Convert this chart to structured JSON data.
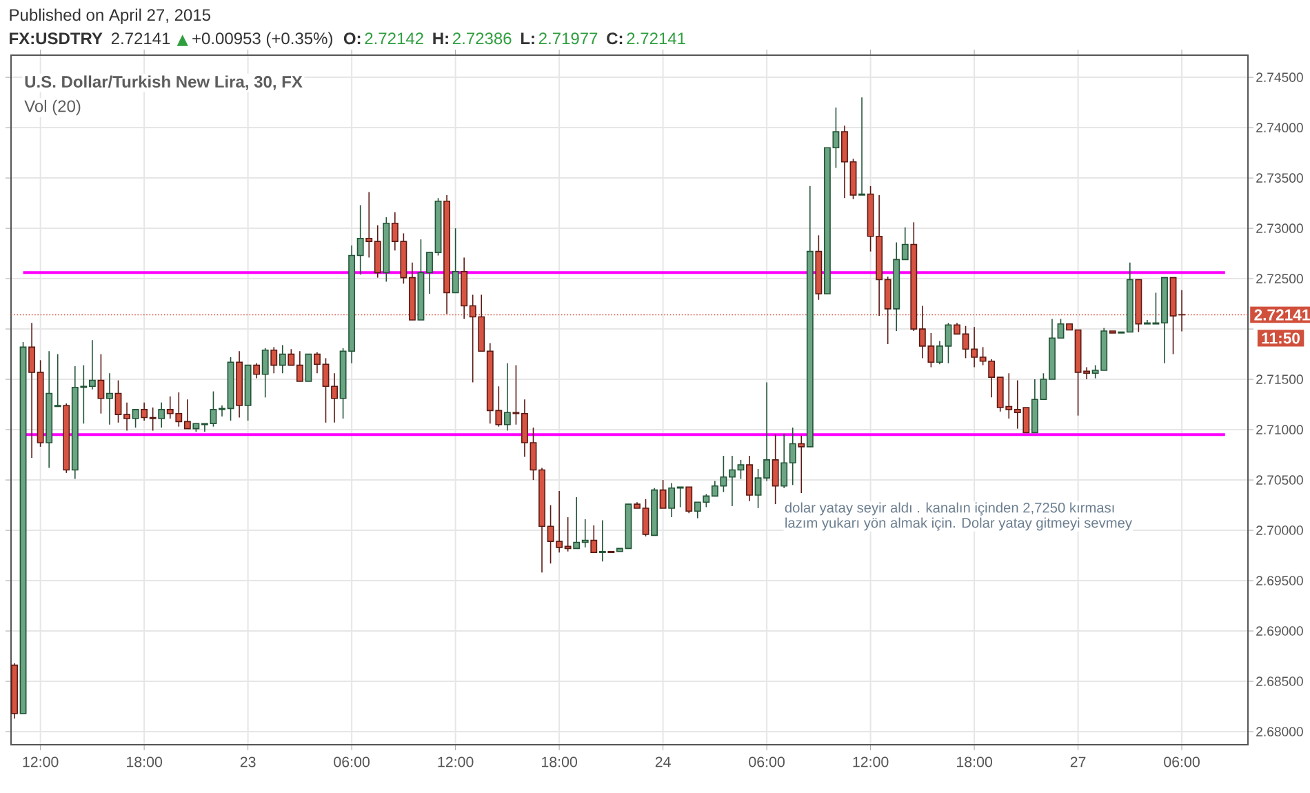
{
  "chart_data": {
    "type": "candlestick",
    "title": "U.S. Dollar/Turkish New Lira, 30, FX",
    "subtitle": "Vol (20)",
    "annotations": [
      "Published on April 27, 2015",
      "FX:USDTRY",
      "2.72141",
      "▲",
      "+0.00953 (+0.35%)",
      "O:",
      "2.72142",
      "H:",
      "2.72386",
      "L:",
      "2.71977",
      "C:",
      "2.72141",
      "11:50",
      "dolar yatay seyir aldı . kanalın içinden 2,7250 kırması",
      "lazım yukarı yön almak için. Dolar yatay gitmeyi sevmey"
    ],
    "categories": [
      null,
      null,
      null,
      "12:00",
      null,
      null,
      null,
      null,
      null,
      null,
      null,
      null,
      null,
      null,
      null,
      "18:00",
      null,
      null,
      null,
      null,
      null,
      null,
      null,
      null,
      null,
      null,
      null,
      "23",
      null,
      null,
      null,
      null,
      null,
      null,
      null,
      null,
      null,
      null,
      null,
      "06:00",
      null,
      null,
      null,
      null,
      null,
      null,
      null,
      null,
      null,
      null,
      null,
      "12:00",
      null,
      null,
      null,
      null,
      null,
      null,
      null,
      null,
      null,
      null,
      null,
      "18:00",
      null,
      null,
      null,
      null,
      null,
      null,
      null,
      null,
      null,
      null,
      null,
      "24",
      null,
      null,
      null,
      null,
      null,
      null,
      null,
      null,
      null,
      null,
      null,
      "06:00",
      null,
      null,
      null,
      null,
      null,
      null,
      null,
      null,
      null,
      null,
      null,
      "12:00",
      null,
      null,
      null,
      null,
      null,
      null,
      null,
      null,
      null,
      null,
      null,
      "18:00",
      null,
      null,
      null,
      null,
      null,
      null,
      null,
      null,
      null,
      null,
      null,
      "27",
      null,
      null,
      null,
      null,
      null,
      null,
      null,
      null,
      null,
      null,
      null,
      "06:00"
    ],
    "ohlc": [
      [
        2.6866,
        2.6868,
        2.6813,
        2.6818
      ],
      [
        2.6818,
        2.7187,
        2.6818,
        2.7182
      ],
      [
        2.7182,
        2.7206,
        2.7072,
        2.7157
      ],
      [
        2.7157,
        2.7169,
        2.7083,
        2.7087
      ],
      [
        2.7087,
        2.7178,
        2.7062,
        2.7136
      ],
      [
        2.7123,
        2.7175,
        2.7123,
        2.7124
      ],
      [
        2.7124,
        2.7126,
        2.7057,
        2.706
      ],
      [
        2.706,
        2.7163,
        2.7051,
        2.7142
      ],
      [
        2.7142,
        2.7164,
        2.7106,
        2.7143
      ],
      [
        2.7143,
        2.7189,
        2.714,
        2.7149
      ],
      [
        2.7149,
        2.7175,
        2.7116,
        2.7131
      ],
      [
        2.7131,
        2.7156,
        2.7105,
        2.7136
      ],
      [
        2.7136,
        2.7149,
        2.7107,
        2.7115
      ],
      [
        2.7115,
        2.7127,
        2.7099,
        2.7111
      ],
      [
        2.7111,
        2.712,
        2.7102,
        2.712
      ],
      [
        2.712,
        2.7127,
        2.7109,
        2.7112
      ],
      [
        2.7112,
        2.7122,
        2.7099,
        2.7111
      ],
      [
        2.7111,
        2.7127,
        2.7102,
        2.712
      ],
      [
        2.712,
        2.7133,
        2.7111,
        2.7116
      ],
      [
        2.7116,
        2.7137,
        2.7103,
        2.7108
      ],
      [
        2.7108,
        2.713,
        2.7101,
        2.7101
      ],
      [
        2.7101,
        2.7106,
        2.7098,
        2.7106
      ],
      [
        2.7105,
        2.7106,
        2.7098,
        2.7106
      ],
      [
        2.7106,
        2.7138,
        2.7103,
        2.712
      ],
      [
        2.712,
        2.7124,
        2.7113,
        2.7121
      ],
      [
        2.7121,
        2.7172,
        2.7109,
        2.7167
      ],
      [
        2.7167,
        2.7178,
        2.7112,
        2.7124
      ],
      [
        2.7124,
        2.7164,
        2.7109,
        2.7164
      ],
      [
        2.7164,
        2.7166,
        2.7151,
        2.7155
      ],
      [
        2.7155,
        2.7181,
        2.7132,
        2.7179
      ],
      [
        2.7179,
        2.7182,
        2.7156,
        2.7164
      ],
      [
        2.7164,
        2.7184,
        2.7156,
        2.7175
      ],
      [
        2.7175,
        2.718,
        2.7164,
        2.7164
      ],
      [
        2.7164,
        2.7178,
        2.7148,
        2.7148
      ],
      [
        2.7148,
        2.7175,
        2.7148,
        2.7175
      ],
      [
        2.7175,
        2.7177,
        2.7156,
        2.7165
      ],
      [
        2.7165,
        2.7171,
        2.7107,
        2.7143
      ],
      [
        2.7143,
        2.7156,
        2.7107,
        2.7131
      ],
      [
        2.7131,
        2.7181,
        2.7111,
        2.7178
      ],
      [
        2.7178,
        2.7283,
        2.7166,
        2.7273
      ],
      [
        2.7273,
        2.7323,
        2.7254,
        2.729
      ],
      [
        2.729,
        2.7336,
        2.7271,
        2.7287
      ],
      [
        2.7287,
        2.7303,
        2.7251,
        2.7256
      ],
      [
        2.7256,
        2.7311,
        2.7247,
        2.7305
      ],
      [
        2.7305,
        2.7316,
        2.7278,
        2.7287
      ],
      [
        2.7287,
        2.7295,
        2.7245,
        2.7251
      ],
      [
        2.7251,
        2.7266,
        2.7209,
        2.7209
      ],
      [
        2.7209,
        2.7289,
        2.7209,
        2.7256
      ],
      [
        2.7256,
        2.7276,
        2.7235,
        2.7276
      ],
      [
        2.7276,
        2.733,
        2.7273,
        2.7327
      ],
      [
        2.7327,
        2.7333,
        2.7215,
        2.7236
      ],
      [
        2.7236,
        2.73,
        2.7236,
        2.7257
      ],
      [
        2.7257,
        2.7271,
        2.721,
        2.7223
      ],
      [
        2.7223,
        2.7234,
        2.7147,
        2.7212
      ],
      [
        2.7212,
        2.7234,
        2.7178,
        2.7178
      ],
      [
        2.7178,
        2.7186,
        2.7106,
        2.7119
      ],
      [
        2.7119,
        2.7143,
        2.7103,
        2.7105
      ],
      [
        2.7105,
        2.7166,
        2.7099,
        2.7117
      ],
      [
        2.7117,
        2.7164,
        2.7105,
        2.7116
      ],
      [
        2.7116,
        2.713,
        2.7073,
        2.7087
      ],
      [
        2.7087,
        2.7102,
        2.705,
        2.706
      ],
      [
        2.706,
        2.7062,
        2.6958,
        2.7004
      ],
      [
        2.7004,
        2.7025,
        2.6967,
        2.6989
      ],
      [
        2.6989,
        2.7039,
        2.6978,
        2.6983
      ],
      [
        2.6984,
        2.7013,
        2.6979,
        2.6982
      ],
      [
        2.6982,
        2.7033,
        2.6982,
        2.6988
      ],
      [
        2.6988,
        2.7011,
        2.6983,
        2.699
      ],
      [
        2.699,
        2.7005,
        2.6978,
        2.6978
      ],
      [
        2.6978,
        2.701,
        2.6969,
        2.6979
      ],
      [
        2.6979,
        2.6979,
        2.6978,
        2.6978
      ],
      [
        2.6979,
        2.6982,
        2.6979,
        2.6982
      ],
      [
        2.6982,
        2.7026,
        2.6982,
        2.7026
      ],
      [
        2.7026,
        2.7028,
        2.7022,
        2.7022
      ],
      [
        2.7022,
        2.7031,
        2.6994,
        2.6996
      ],
      [
        2.6995,
        2.7042,
        2.6995,
        2.704
      ],
      [
        2.704,
        2.705,
        2.7022,
        2.7022
      ],
      [
        2.7022,
        2.7047,
        2.7013,
        2.7042
      ],
      [
        2.7042,
        2.7043,
        2.7023,
        2.7043
      ],
      [
        2.7043,
        2.7043,
        2.7017,
        2.7019
      ],
      [
        2.7019,
        2.7028,
        2.7012,
        2.7028
      ],
      [
        2.7028,
        2.7036,
        2.7023,
        2.7034
      ],
      [
        2.7034,
        2.7049,
        2.7034,
        2.7044
      ],
      [
        2.7044,
        2.7074,
        2.7038,
        2.7053
      ],
      [
        2.7053,
        2.7074,
        2.7024,
        2.706
      ],
      [
        2.706,
        2.707,
        2.7051,
        2.7065
      ],
      [
        2.7065,
        2.7074,
        2.7029,
        2.7035
      ],
      [
        2.7035,
        2.7061,
        2.7022,
        2.7052
      ],
      [
        2.7052,
        2.7147,
        2.7049,
        2.707
      ],
      [
        2.707,
        2.7095,
        2.7026,
        2.7044
      ],
      [
        2.7044,
        2.7096,
        2.7042,
        2.7067
      ],
      [
        2.7067,
        2.7102,
        2.7045,
        2.7086
      ],
      [
        2.7086,
        2.7094,
        2.7037,
        2.7083
      ],
      [
        2.7083,
        2.7342,
        2.7083,
        2.7277
      ],
      [
        2.7277,
        2.7293,
        2.7229,
        2.7235
      ],
      [
        2.7235,
        2.738,
        2.7235,
        2.738
      ],
      [
        2.738,
        2.742,
        2.736,
        2.7396
      ],
      [
        2.7396,
        2.7402,
        2.733,
        2.7366
      ],
      [
        2.7366,
        2.7369,
        2.7329,
        2.7333
      ],
      [
        2.7333,
        2.743,
        2.7333,
        2.7334
      ],
      [
        2.7334,
        2.7342,
        2.7277,
        2.7292
      ],
      [
        2.7292,
        2.7333,
        2.7213,
        2.7249
      ],
      [
        2.7249,
        2.7252,
        2.7185,
        2.722
      ],
      [
        2.722,
        2.7286,
        2.7198,
        2.7269
      ],
      [
        2.7269,
        2.7301,
        2.7269,
        2.7284
      ],
      [
        2.7284,
        2.7306,
        2.7198,
        2.72
      ],
      [
        2.72,
        2.7223,
        2.7171,
        2.7183
      ],
      [
        2.7183,
        2.7196,
        2.7162,
        2.7167
      ],
      [
        2.7167,
        2.7188,
        2.7165,
        2.7183
      ],
      [
        2.7183,
        2.7206,
        2.7166,
        2.7204
      ],
      [
        2.7204,
        2.7206,
        2.7195,
        2.7195
      ],
      [
        2.7195,
        2.7203,
        2.7171,
        2.718
      ],
      [
        2.718,
        2.7202,
        2.7162,
        2.7172
      ],
      [
        2.7172,
        2.7182,
        2.7164,
        2.7168
      ],
      [
        2.7168,
        2.717,
        2.7132,
        2.7152
      ],
      [
        2.7152,
        2.7152,
        2.7118,
        2.7122
      ],
      [
        2.7123,
        2.7156,
        2.7111,
        2.712
      ],
      [
        2.712,
        2.7149,
        2.7101,
        2.7117
      ],
      [
        2.7122,
        2.7122,
        2.7097,
        2.7097
      ],
      [
        2.7097,
        2.715,
        2.7097,
        2.713
      ],
      [
        2.713,
        2.7156,
        2.713,
        2.715
      ],
      [
        2.715,
        2.721,
        2.715,
        2.7191
      ],
      [
        2.7191,
        2.721,
        2.7191,
        2.7205
      ],
      [
        2.7205,
        2.7205,
        2.7199,
        2.7199
      ],
      [
        2.7199,
        2.7199,
        2.7114,
        2.7157
      ],
      [
        2.7158,
        2.7162,
        2.715,
        2.7156
      ],
      [
        2.7156,
        2.7164,
        2.7151,
        2.7159
      ],
      [
        2.7159,
        2.7201,
        2.7159,
        2.7198
      ],
      [
        2.7198,
        2.7198,
        2.7196,
        2.7196
      ],
      [
        2.7196,
        2.7197,
        2.7196,
        2.7197
      ],
      [
        2.7197,
        2.7266,
        2.7197,
        2.7249
      ],
      [
        2.7249,
        2.7249,
        2.7197,
        2.7205
      ],
      [
        2.7205,
        2.7209,
        2.7205,
        2.7206
      ],
      [
        2.7205,
        2.7236,
        2.7205,
        2.7206
      ],
      [
        2.7206,
        2.7251,
        2.7166,
        2.7251
      ],
      [
        2.7251,
        2.7251,
        2.7175,
        2.7213
      ],
      [
        2.72142,
        2.72386,
        2.71977,
        2.72141
      ]
    ],
    "ylim": [
      2.6787,
      2.7472
    ],
    "yticks": [
      {
        "value": 2.68,
        "label": "2.68000"
      },
      {
        "value": 2.685,
        "label": "2.68500"
      },
      {
        "value": 2.69,
        "label": "2.69000"
      },
      {
        "value": 2.695,
        "label": "2.69500"
      },
      {
        "value": 2.7,
        "label": "2.70000"
      },
      {
        "value": 2.705,
        "label": "2.70500"
      },
      {
        "value": 2.71,
        "label": "2.71000"
      },
      {
        "value": 2.715,
        "label": "2.71500"
      },
      {
        "value": 2.72,
        "label": null
      },
      {
        "value": 2.725,
        "label": "2.72500"
      },
      {
        "value": 2.73,
        "label": "2.73000"
      },
      {
        "value": 2.735,
        "label": "2.73500"
      },
      {
        "value": 2.74,
        "label": "2.74000"
      },
      {
        "value": 2.745,
        "label": "2.74500"
      }
    ],
    "grid": true,
    "ref_lines": [
      {
        "axis": "y",
        "value": 2.7256,
        "color": "#ff00ff",
        "line_style": "solid"
      },
      {
        "axis": "y",
        "value": 2.7095,
        "color": "#ff00ff",
        "line_style": "solid"
      },
      {
        "axis": "y",
        "value": 2.72141,
        "label": "2.72141",
        "color": "#d0503c",
        "line_style": "dotted"
      }
    ]
  }
}
